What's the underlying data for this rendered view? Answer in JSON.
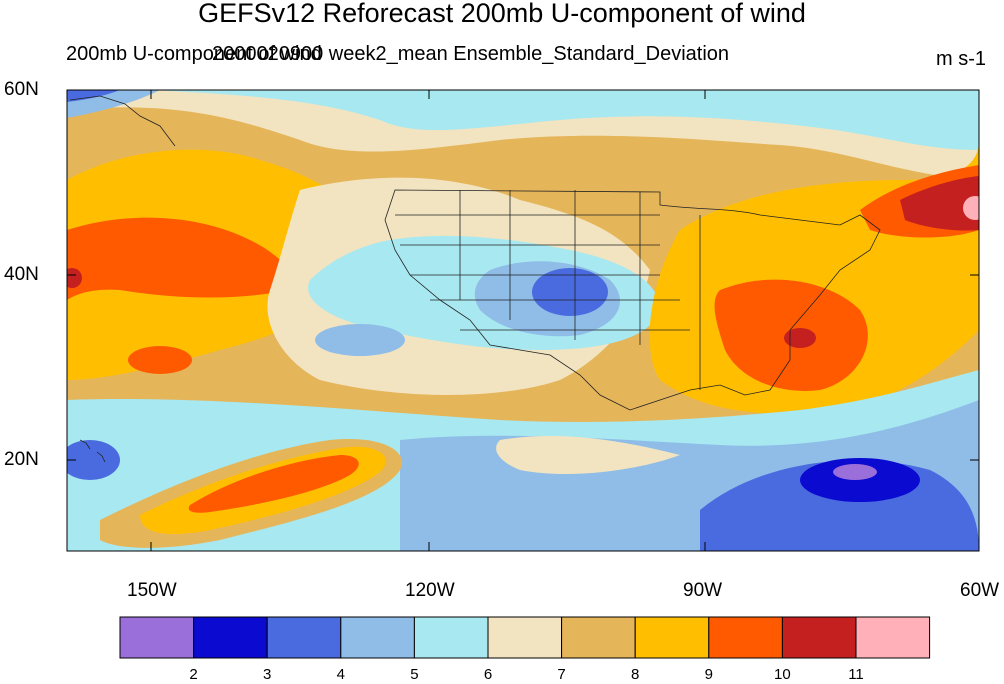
{
  "title": "GEFSv12 Reforecast 200mb U-component of wind",
  "left_subtitle": "200mb U-component of wind",
  "center_subtitle": "2000020900 week2_mean Ensemble_Standard_Deviation",
  "units": "m s-1",
  "lat_labels": [
    "60N",
    "40N",
    "20N"
  ],
  "lon_labels": [
    "150W",
    "120W",
    "90W",
    "60W"
  ],
  "colorbar": {
    "tick_labels": [
      "2",
      "3",
      "4",
      "5",
      "6",
      "7",
      "8",
      "9",
      "10",
      "11"
    ],
    "colors": [
      "#9b6fd9",
      "#0a0ad0",
      "#4a6be0",
      "#8fbde8",
      "#a8e8f0",
      "#f2e4c0",
      "#e5b55a",
      "#ffbf00",
      "#ff5a00",
      "#c42020",
      "#ffb0b8"
    ]
  },
  "colors": {
    "c2": "#9b6fd9",
    "c3": "#0a0ad0",
    "c4": "#4a6be0",
    "c5": "#8fbde8",
    "c6": "#a8e8f0",
    "c7": "#f2e4c0",
    "c8": "#e5b55a",
    "c9": "#ffbf00",
    "c10": "#ff5a00",
    "c11": "#c42020",
    "c12": "#ffb0b8"
  }
}
